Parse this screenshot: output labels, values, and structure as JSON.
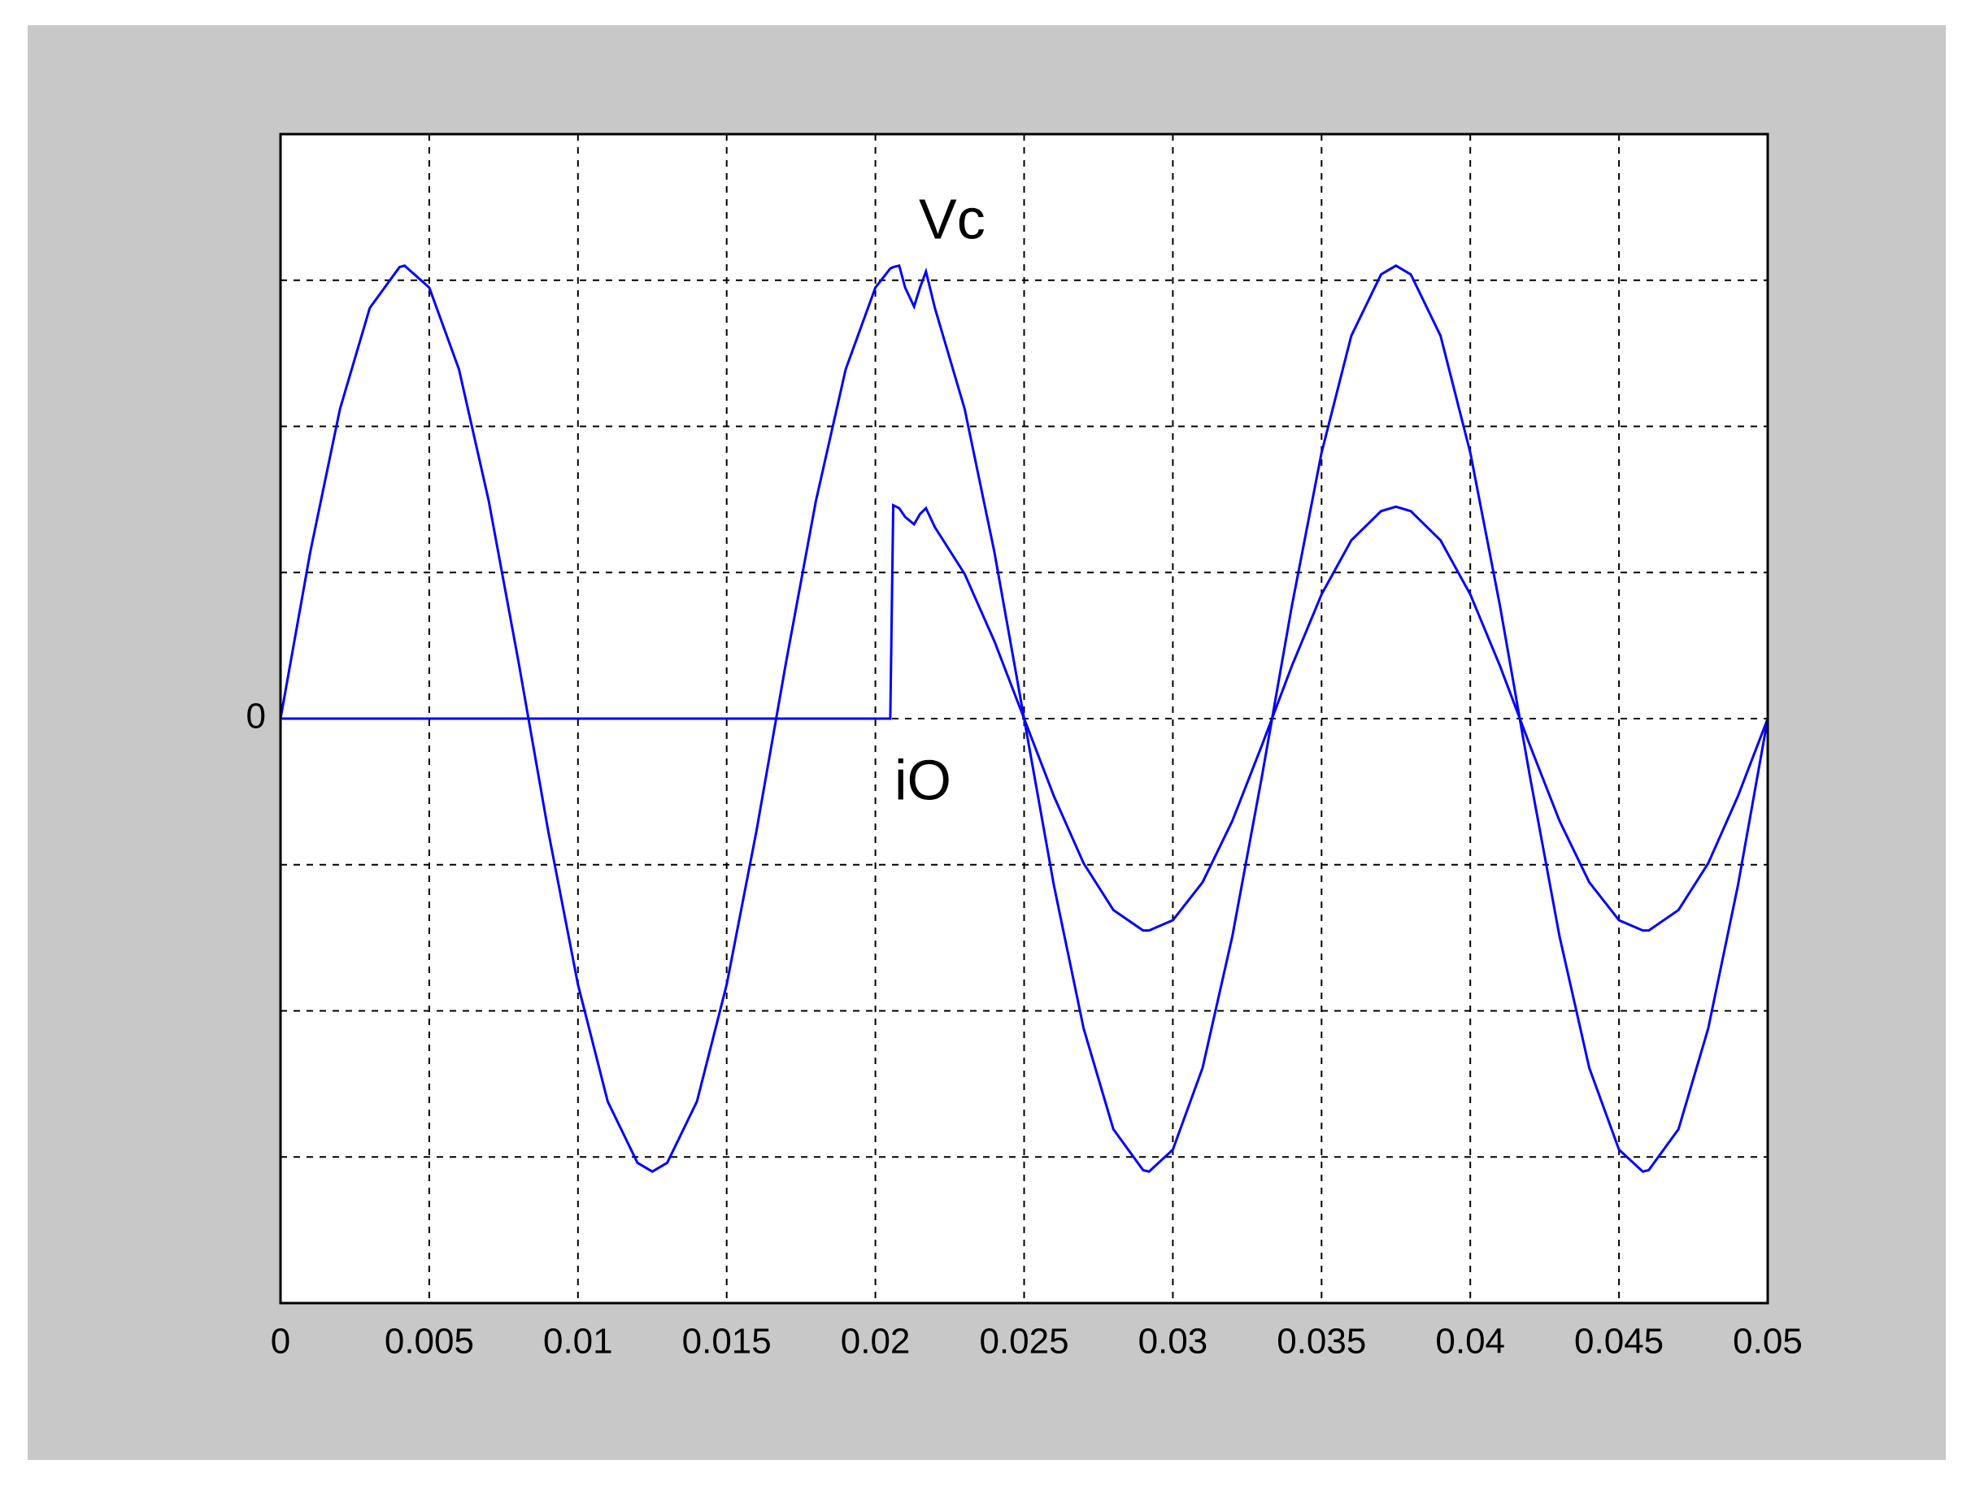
{
  "chart_data": {
    "type": "line",
    "x": [
      0,
      0.001,
      0.002,
      0.003,
      0.004,
      0.00417,
      0.005,
      0.006,
      0.007,
      0.008,
      0.009,
      0.01,
      0.011,
      0.012,
      0.0125,
      0.013,
      0.014,
      0.015,
      0.016,
      0.017,
      0.018,
      0.019,
      0.02,
      0.0205,
      0.0206,
      0.0208,
      0.021,
      0.0213,
      0.0215,
      0.0217,
      0.022,
      0.023,
      0.024,
      0.025,
      0.026,
      0.027,
      0.028,
      0.029,
      0.0292,
      0.03,
      0.031,
      0.032,
      0.033,
      0.034,
      0.035,
      0.036,
      0.037,
      0.0375,
      0.038,
      0.039,
      0.04,
      0.041,
      0.042,
      0.043,
      0.044,
      0.045,
      0.0458,
      0.046,
      0.047,
      0.048,
      0.049,
      0.05
    ],
    "series": [
      {
        "name": "Vc",
        "color": "#0000ff",
        "values": [
          0,
          1.14,
          2.12,
          2.81,
          3.09,
          3.1,
          2.95,
          2.39,
          1.49,
          0.39,
          -0.77,
          -1.82,
          -2.62,
          -3.04,
          -3.1,
          -3.04,
          -2.62,
          -1.82,
          -0.77,
          0.39,
          1.49,
          2.39,
          2.95,
          3.08,
          3.09,
          3.1,
          2.95,
          2.82,
          2.95,
          3.06,
          2.81,
          2.12,
          1.14,
          0,
          -1.14,
          -2.12,
          -2.81,
          -3.09,
          -3.1,
          -2.95,
          -2.39,
          -1.49,
          -0.39,
          0.77,
          1.82,
          2.62,
          3.04,
          3.1,
          3.04,
          2.62,
          1.82,
          0.77,
          -0.39,
          -1.49,
          -2.39,
          -2.95,
          -3.1,
          -3.09,
          -2.81,
          -2.12,
          -1.14,
          0
        ]
      },
      {
        "name": "iO",
        "color": "#0000ff",
        "values": [
          0,
          0,
          0,
          0,
          0,
          0,
          0,
          0,
          0,
          0,
          0,
          0,
          0,
          0,
          0,
          0,
          0,
          0,
          0,
          0,
          0,
          0,
          0,
          0,
          1.46,
          1.44,
          1.38,
          1.33,
          1.4,
          1.44,
          1.31,
          0.99,
          0.53,
          0,
          -0.53,
          -0.99,
          -1.31,
          -1.45,
          -1.45,
          -1.38,
          -1.12,
          -0.7,
          -0.18,
          0.36,
          0.85,
          1.22,
          1.42,
          1.45,
          1.42,
          1.22,
          0.85,
          0.36,
          -0.18,
          -0.7,
          -1.12,
          -1.38,
          -1.45,
          -1.45,
          -1.31,
          -0.99,
          -0.53,
          0
        ]
      }
    ],
    "xlim": [
      0,
      0.05
    ],
    "xticks": [
      0,
      0.005,
      0.01,
      0.015,
      0.02,
      0.025,
      0.03,
      0.035,
      0.04,
      0.045,
      0.05
    ],
    "ylim": [
      -4,
      4
    ],
    "yticks": [
      {
        "value": -4,
        "label": null
      },
      {
        "value": -3,
        "label": null
      },
      {
        "value": -2,
        "label": null
      },
      {
        "value": -1,
        "label": null
      },
      0,
      {
        "value": 1,
        "label": null
      },
      {
        "value": 2,
        "label": null
      },
      {
        "value": 3,
        "label": null
      },
      {
        "value": 4,
        "label": null
      }
    ],
    "grid": true
  }
}
